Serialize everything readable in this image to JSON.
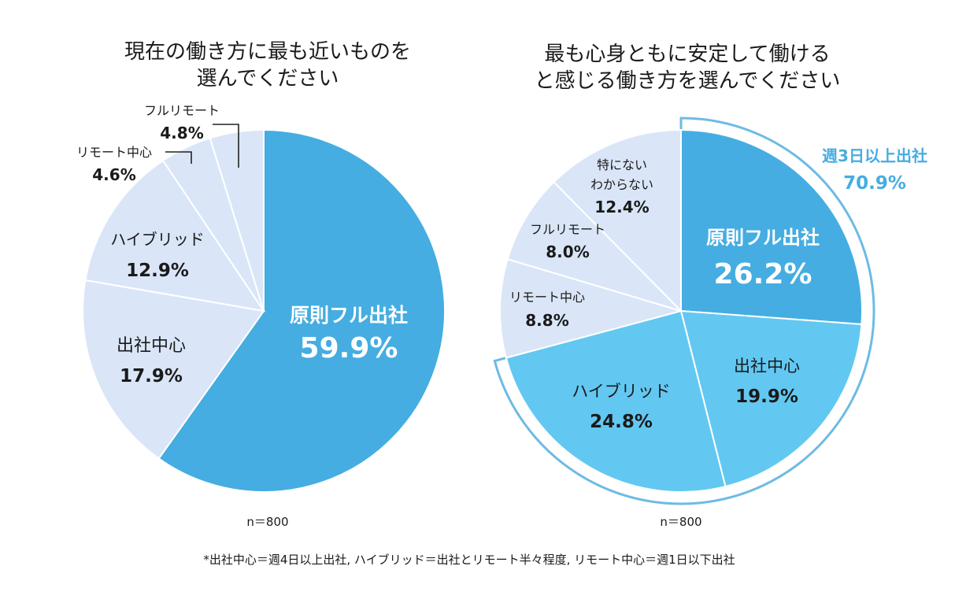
{
  "chart_data": [
    {
      "type": "pie",
      "title_lines": [
        "現在の働き方に最も近いものを",
        "選んでください"
      ],
      "slices": [
        {
          "name": "原則フル出社",
          "value": 59.9,
          "label": "59.9%",
          "color": "#45ade1"
        },
        {
          "name": "出社中心",
          "value": 17.9,
          "label": "17.9%",
          "color": "#dae6f7"
        },
        {
          "name": "ハイブリッド",
          "value": 12.9,
          "label": "12.9%",
          "color": "#dae6f7"
        },
        {
          "name": "リモート中心",
          "value": 4.6,
          "label": "4.6%",
          "color": "#dae6f7"
        },
        {
          "name": "フルリモート",
          "value": 4.8,
          "label": "4.8%",
          "color": "#dae6f7"
        }
      ],
      "n_label": "n＝800"
    },
    {
      "type": "pie",
      "title_lines": [
        "最も心身ともに安定して働ける",
        "と感じる働き方を選んでください"
      ],
      "slices": [
        {
          "name": "原則フル出社",
          "value": 26.2,
          "label": "26.2%",
          "color": "#45ade1"
        },
        {
          "name": "出社中心",
          "value": 19.9,
          "label": "19.9%",
          "color": "#62c8f1"
        },
        {
          "name": "ハイブリッド",
          "value": 24.8,
          "label": "24.8%",
          "color": "#62c8f1"
        },
        {
          "name": "リモート中心",
          "value": 8.8,
          "label": "8.8%",
          "color": "#dae6f7"
        },
        {
          "name": "フルリモート",
          "value": 8.0,
          "label": "8.0%",
          "color": "#dae6f7"
        },
        {
          "name_lines": [
            "特にない",
            "わからない"
          ],
          "name": "特にない わからない",
          "value": 12.4,
          "label": "12.4%",
          "color": "#dae6f7"
        }
      ],
      "bracket": {
        "label": "週3日以上出社",
        "value": "70.9%",
        "color": "#6dbbe3"
      },
      "n_label": "n＝800"
    }
  ],
  "footnote": "*出社中心＝週4日以上出社, ハイブリッド＝出社とリモート半々程度, リモート中心＝週1日以下出社"
}
